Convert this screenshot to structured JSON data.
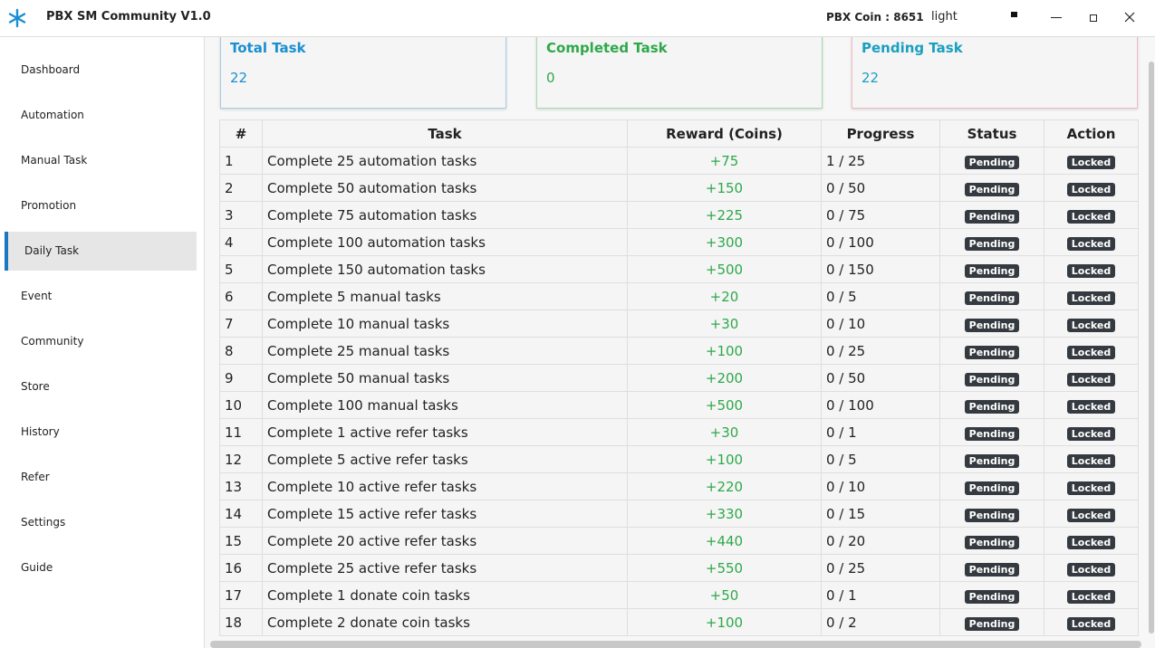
{
  "titlebar": {
    "app_name": "PBX SM Community V1.0",
    "coin_label": "PBX Coin : 8651",
    "theme": "light"
  },
  "sidebar": {
    "items": [
      "Dashboard",
      "Automation",
      "Manual Task",
      "Promotion",
      "Daily Task",
      "Event",
      "Community",
      "Store",
      "History",
      "Refer",
      "Settings",
      "Guide"
    ],
    "active": 4
  },
  "summary": [
    {
      "label": "Total Task",
      "value": 22,
      "color": "#1a8fd0",
      "border": "#a9cde6"
    },
    {
      "label": "Completed Task",
      "value": 0,
      "color": "#2ea84a",
      "border": "#a6dcae"
    },
    {
      "label": "Pending Task",
      "value": 22,
      "color": "#1a9fc0",
      "border": "#f1b9c3"
    }
  ],
  "table": {
    "headers": [
      "#",
      "Task",
      "Reward (Coins)",
      "Progress",
      "Status",
      "Action"
    ],
    "rows": [
      [
        1,
        "Complete 25 automation tasks",
        "+75",
        "1 / 25",
        "Pending",
        "Locked"
      ],
      [
        2,
        "Complete 50 automation tasks",
        "+150",
        "0 / 50",
        "Pending",
        "Locked"
      ],
      [
        3,
        "Complete 75 automation tasks",
        "+225",
        "0 / 75",
        "Pending",
        "Locked"
      ],
      [
        4,
        "Complete 100 automation tasks",
        "+300",
        "0 / 100",
        "Pending",
        "Locked"
      ],
      [
        5,
        "Complete 150 automation tasks",
        "+500",
        "0 / 150",
        "Pending",
        "Locked"
      ],
      [
        6,
        "Complete 5 manual tasks",
        "+20",
        "0 / 5",
        "Pending",
        "Locked"
      ],
      [
        7,
        "Complete 10 manual tasks",
        "+30",
        "0 / 10",
        "Pending",
        "Locked"
      ],
      [
        8,
        "Complete 25 manual tasks",
        "+100",
        "0 / 25",
        "Pending",
        "Locked"
      ],
      [
        9,
        "Complete 50 manual tasks",
        "+200",
        "0 / 50",
        "Pending",
        "Locked"
      ],
      [
        10,
        "Complete 100 manual tasks",
        "+500",
        "0 / 100",
        "Pending",
        "Locked"
      ],
      [
        11,
        "Complete 1 active refer tasks",
        "+30",
        "0 / 1",
        "Pending",
        "Locked"
      ],
      [
        12,
        "Complete 5 active refer tasks",
        "+100",
        "0 / 5",
        "Pending",
        "Locked"
      ],
      [
        13,
        "Complete 10 active refer tasks",
        "+220",
        "0 / 10",
        "Pending",
        "Locked"
      ],
      [
        14,
        "Complete 15 active refer tasks",
        "+330",
        "0 / 15",
        "Pending",
        "Locked"
      ],
      [
        15,
        "Complete 20 active refer tasks",
        "+440",
        "0 / 20",
        "Pending",
        "Locked"
      ],
      [
        16,
        "Complete 25 active refer tasks",
        "+550",
        "0 / 25",
        "Pending",
        "Locked"
      ],
      [
        17,
        "Complete 1 donate coin tasks",
        "+50",
        "0 / 1",
        "Pending",
        "Locked"
      ],
      [
        18,
        "Complete 2 donate coin tasks",
        "+100",
        "0 / 2",
        "Pending",
        "Locked"
      ]
    ]
  }
}
